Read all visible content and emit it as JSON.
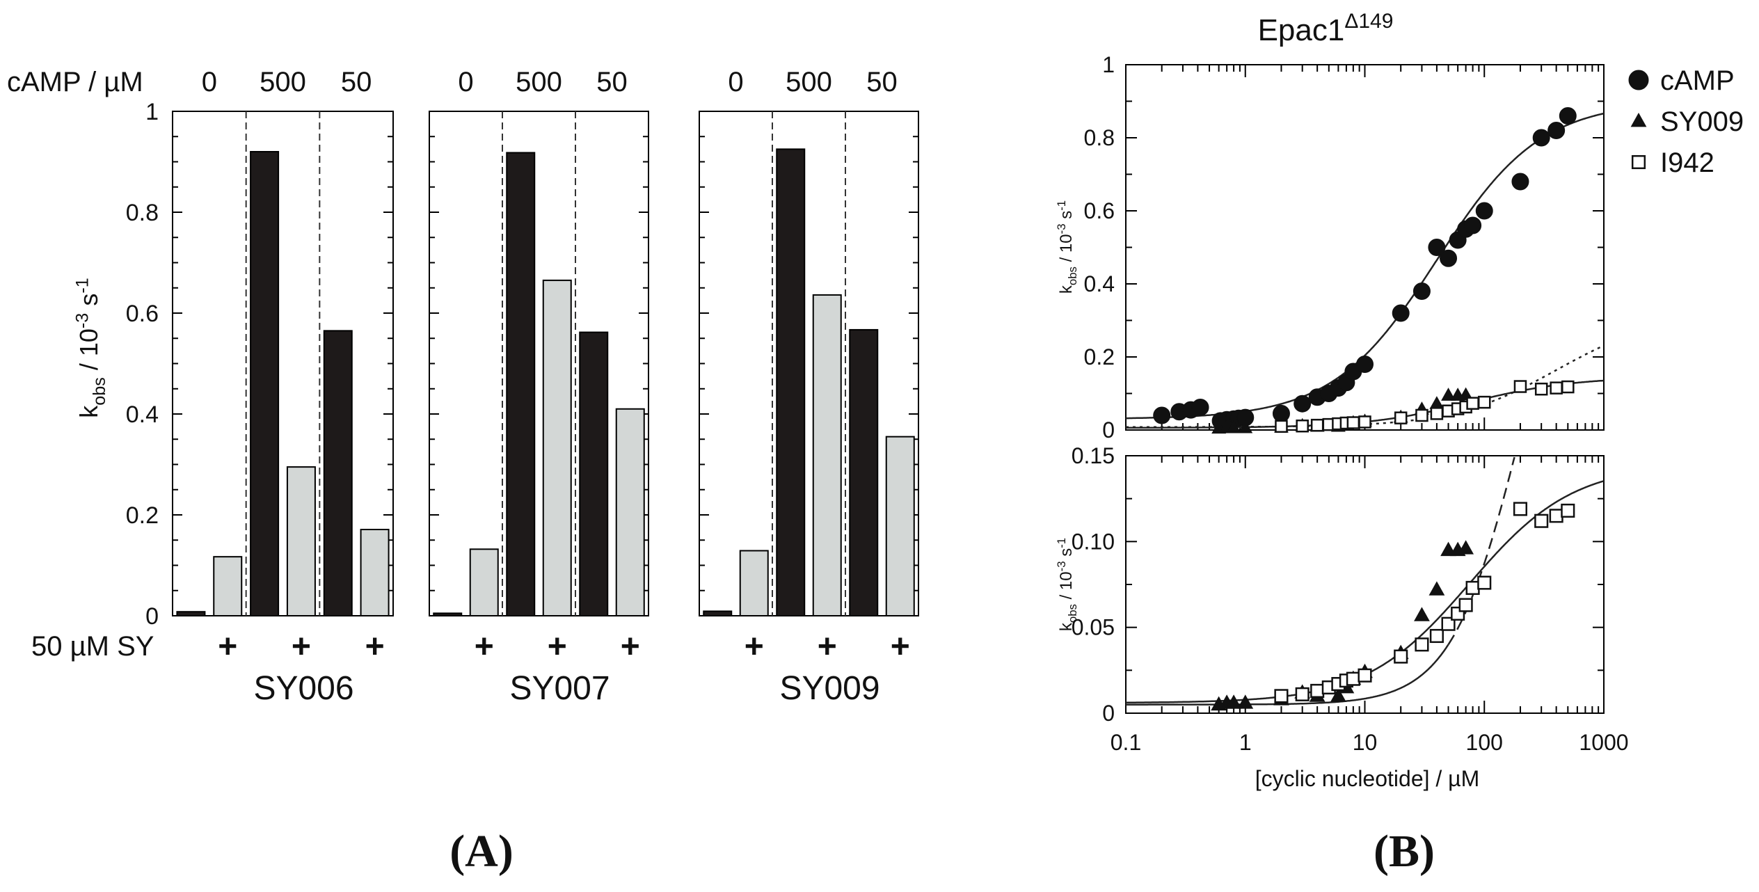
{
  "panel_labels": {
    "a": "(A)",
    "b": "(B)"
  },
  "colors": {
    "bar_black": "#1e1a1a",
    "bar_grey": "#d3d7d6",
    "line": "#222222"
  },
  "chart_data": [
    {
      "type": "bar",
      "panel": "A",
      "ylabel": "k_obs / 10^-3 s^-1",
      "ylim": [
        0,
        1
      ],
      "yticks": [
        0,
        0.2,
        0.4,
        0.6,
        0.8,
        1
      ],
      "ytick_labels": [
        "0",
        "0.2",
        "0.4",
        "0.6",
        "0.8",
        "1"
      ],
      "camp_row_label": "cAMP / µM",
      "camp_levels": [
        "0",
        "500",
        "50"
      ],
      "sy_row_label": "50 µM SY",
      "plus": "+",
      "groups": [
        {
          "name": "SY006",
          "camp0_ctrl": 0.008,
          "camp0_sy": 0.117,
          "camp500_ctrl": 0.92,
          "camp500_sy": 0.295,
          "camp50_ctrl": 0.565,
          "camp50_sy": 0.171
        },
        {
          "name": "SY007",
          "camp0_ctrl": 0.005,
          "camp0_sy": 0.132,
          "camp500_ctrl": 0.918,
          "camp500_sy": 0.665,
          "camp50_ctrl": 0.562,
          "camp50_sy": 0.41
        },
        {
          "name": "SY009",
          "camp0_ctrl": 0.009,
          "camp0_sy": 0.129,
          "camp500_ctrl": 0.925,
          "camp500_sy": 0.636,
          "camp50_ctrl": 0.567,
          "camp50_sy": 0.355
        }
      ]
    },
    {
      "type": "scatter",
      "panel": "B-top",
      "title_main": "Epac1",
      "title_sup": "Δ149",
      "xscale": "log",
      "xlim": [
        0.1,
        1000
      ],
      "ylim": [
        0,
        1
      ],
      "yticks": [
        0,
        0.2,
        0.4,
        0.6,
        0.8,
        1
      ],
      "ytick_labels": [
        "0",
        "0.2",
        "0.4",
        "0.6",
        "0.8",
        "1"
      ],
      "ylabel": "k_obs / 10^-3 s^-1",
      "legend": [
        {
          "label": "cAMP",
          "marker": "circle"
        },
        {
          "label": "SY009",
          "marker": "triangle"
        },
        {
          "label": "I942",
          "marker": "square"
        }
      ],
      "series": [
        {
          "name": "cAMP",
          "marker": "circle",
          "x": [
            0.2,
            0.28,
            0.35,
            0.42,
            0.62,
            0.7,
            0.8,
            0.88,
            1.0,
            2.0,
            3.0,
            4.0,
            5.0,
            6.0,
            7.0,
            8.0,
            10,
            20,
            30,
            40,
            50,
            60,
            70,
            80,
            100,
            200,
            300,
            400,
            500
          ],
          "y": [
            0.04,
            0.05,
            0.055,
            0.062,
            0.025,
            0.028,
            0.03,
            0.032,
            0.034,
            0.045,
            0.072,
            0.09,
            0.1,
            0.115,
            0.13,
            0.16,
            0.18,
            0.32,
            0.38,
            0.5,
            0.47,
            0.52,
            0.55,
            0.56,
            0.6,
            0.68,
            0.8,
            0.82,
            0.86
          ]
        },
        {
          "name": "SY009",
          "marker": "triangle",
          "x": [
            0.6,
            0.7,
            0.8,
            1.0,
            2.0,
            3.0,
            4.0,
            6.0,
            7.0,
            8.0,
            10,
            20,
            30,
            40,
            50,
            60,
            70
          ],
          "y": [
            0.005,
            0.006,
            0.006,
            0.006,
            0.008,
            0.012,
            0.01,
            0.01,
            0.015,
            0.02,
            0.024,
            0.035,
            0.057,
            0.072,
            0.095,
            0.095,
            0.096
          ]
        },
        {
          "name": "I942",
          "marker": "square",
          "x": [
            2.0,
            3.0,
            4.0,
            5.0,
            6.0,
            7.0,
            8.0,
            10,
            20,
            30,
            40,
            50,
            60,
            70,
            80,
            100,
            200,
            300,
            400,
            500
          ],
          "y": [
            0.01,
            0.011,
            0.013,
            0.015,
            0.017,
            0.019,
            0.02,
            0.022,
            0.033,
            0.04,
            0.045,
            0.052,
            0.058,
            0.063,
            0.073,
            0.076,
            0.119,
            0.112,
            0.115,
            0.118
          ]
        }
      ],
      "fits": [
        {
          "series": "cAMP",
          "style": "solid",
          "base": 0.03,
          "top": 0.9,
          "ec50": 40,
          "hill": 1.0
        },
        {
          "series": "SY009",
          "style": "dotted",
          "base": 0.008,
          "top": 0.32,
          "ec50": 400,
          "hill": 1.0
        },
        {
          "series": "I942",
          "style": "solid",
          "base": 0.006,
          "top": 0.145,
          "ec50": 75,
          "hill": 1.0
        }
      ]
    },
    {
      "type": "scatter",
      "panel": "B-bottom",
      "xscale": "log",
      "xlim": [
        0.1,
        1000
      ],
      "xticks": [
        0.1,
        1,
        10,
        100,
        1000
      ],
      "xtick_labels": [
        "0.1",
        "1",
        "10",
        "100",
        "1000"
      ],
      "xlabel": "[cyclic nucleotide] / µM",
      "ylim": [
        0,
        0.15
      ],
      "yticks": [
        0,
        0.05,
        0.1,
        0.15
      ],
      "ytick_labels": [
        "0",
        "0.05",
        "0.10",
        "0.15"
      ],
      "ylabel": "k_obs / 10^-3 s^-1",
      "series_ref": "uses SY009 and I942 series from B-top",
      "fits": [
        {
          "series": "SY009",
          "style": "solid-dashed",
          "base": 0.005,
          "top": 0.32,
          "ec50": 200,
          "hill": 1.5,
          "dash_from": 50
        },
        {
          "series": "I942",
          "style": "solid",
          "base": 0.006,
          "top": 0.145,
          "ec50": 75,
          "hill": 1.0
        }
      ]
    }
  ]
}
